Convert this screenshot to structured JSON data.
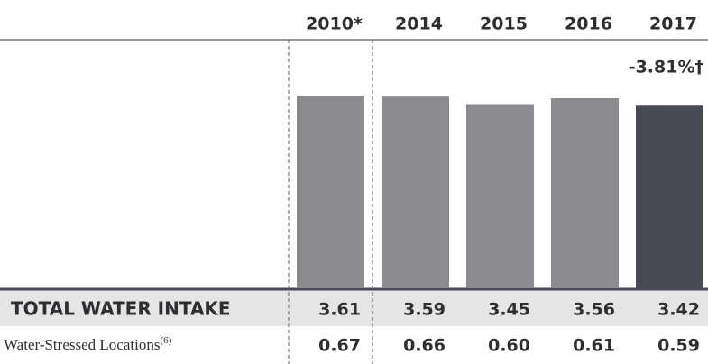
{
  "chart_data": {
    "type": "bar",
    "categories": [
      "2010*",
      "2014",
      "2015",
      "2016",
      "2017"
    ],
    "annotation": "-3.81%†",
    "colors": [
      "#8c8b8f",
      "#8c8b8f",
      "#8c8b8f",
      "#8c8b8f",
      "#464a52"
    ],
    "series": [
      {
        "name": "TOTAL WATER INTAKE",
        "values": [
          3.61,
          3.59,
          3.45,
          3.56,
          3.42
        ]
      },
      {
        "name": "Water-Stressed Locations",
        "footnote": "(6)",
        "values": [
          0.67,
          0.66,
          0.6,
          0.61,
          0.59
        ],
        "value_labels": [
          "0.67",
          "0.66",
          "0.60",
          "0.61",
          "0.59"
        ]
      }
    ]
  }
}
